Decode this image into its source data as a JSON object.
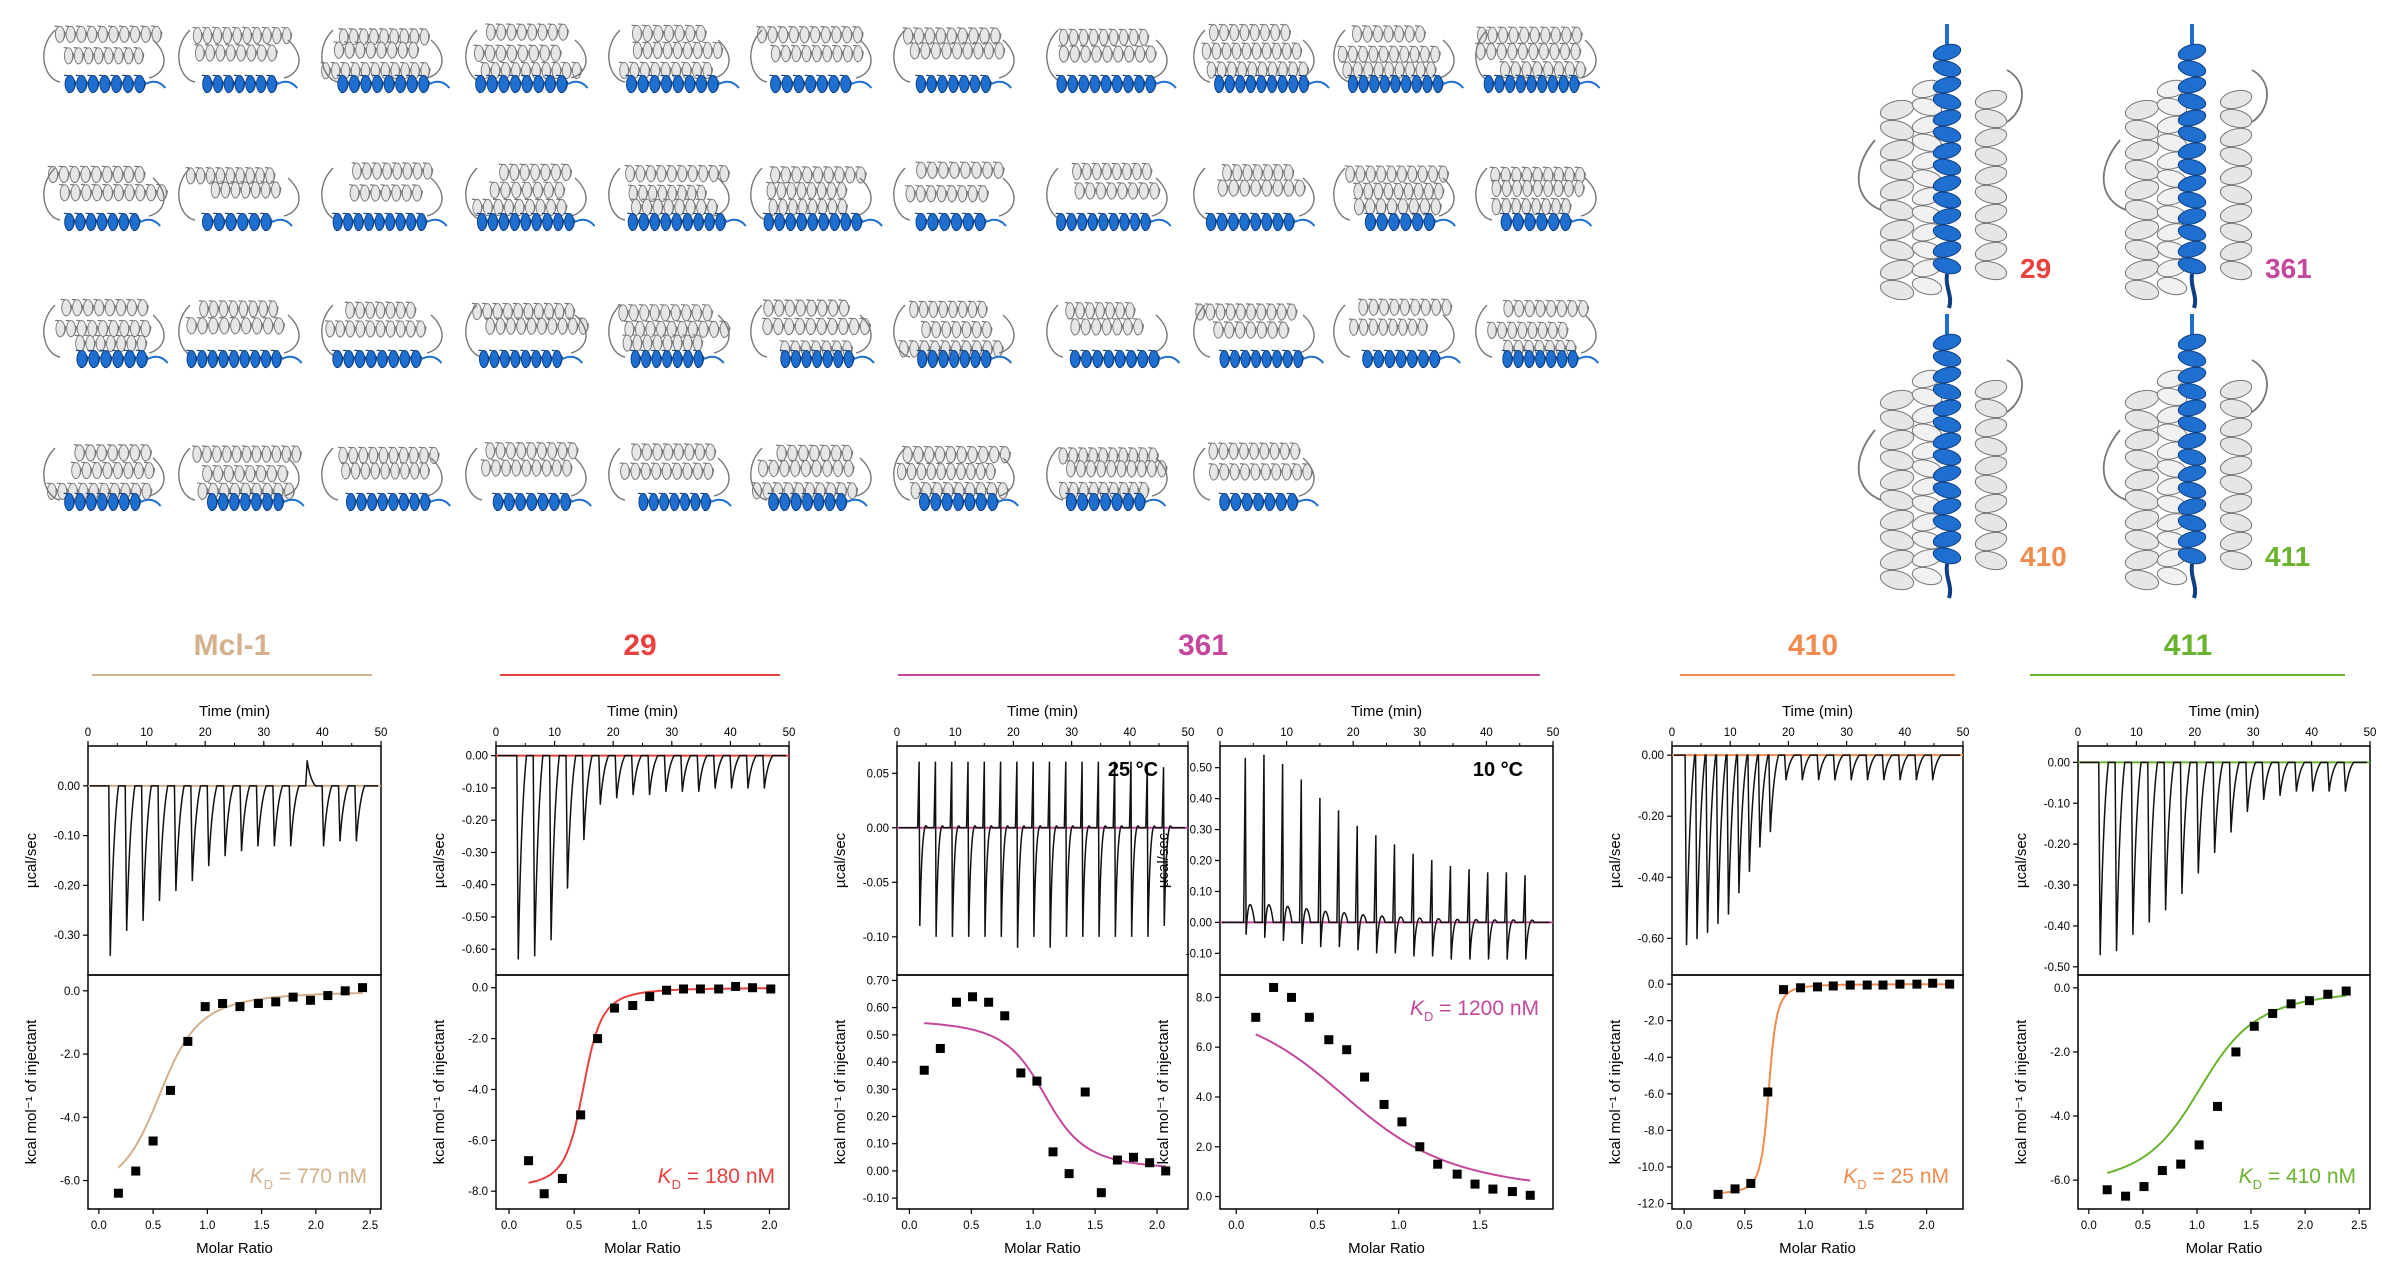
{
  "colors": {
    "helix_blue": "#1f6fd1",
    "helix_blue_light": "#4a8ee0",
    "protein_gray": "#e6e6e6",
    "protein_outline": "#777777",
    "trace": "#111111"
  },
  "structures": {
    "grid_rows": [
      11,
      11,
      11,
      9
    ],
    "labeled": [
      {
        "label": "29",
        "color": "#e8423f"
      },
      {
        "label": "361",
        "color": "#c4479d"
      },
      {
        "label": "410",
        "color": "#f08c4e"
      },
      {
        "label": "411",
        "color": "#6ab32e"
      }
    ]
  },
  "chart_data": [
    {
      "type": "line",
      "panel": "thermogram",
      "group": "Mcl-1",
      "color": "#d4b08c",
      "xlabel": "Time (min)",
      "ylabel": "µcal/sec",
      "xlim": [
        0,
        50
      ],
      "ylim": [
        -0.38,
        0.08
      ],
      "xticks": [
        0,
        10,
        20,
        30,
        40,
        50
      ],
      "yticks": [
        0.0,
        -0.1,
        -0.2,
        -0.3
      ],
      "ytick_labels": [
        "0.00",
        "-0.10",
        "-0.20",
        "-0.30"
      ],
      "baseline": 0.0,
      "peak_times": [
        3.8,
        6.6,
        9.4,
        12.2,
        15.0,
        17.8,
        20.6,
        23.4,
        26.2,
        29.0,
        31.8,
        34.6,
        37.4,
        40.2,
        43.0,
        45.8
      ],
      "peak_values": [
        -0.34,
        -0.29,
        -0.27,
        -0.23,
        -0.21,
        -0.19,
        -0.16,
        -0.14,
        -0.13,
        -0.12,
        -0.12,
        -0.12,
        0.05,
        -0.12,
        -0.11,
        -0.11
      ]
    },
    {
      "type": "scatter",
      "panel": "binding_isotherm",
      "group": "Mcl-1",
      "color": "#d4b08c",
      "xlabel": "Molar Ratio",
      "ylabel": "kcal mol⁻¹ of injectant",
      "xlim": [
        -0.1,
        2.6
      ],
      "ylim": [
        -6.9,
        0.5
      ],
      "xticks": [
        0.0,
        0.5,
        1.0,
        1.5,
        2.0,
        2.5
      ],
      "yticks": [
        0.0,
        -2.0,
        -4.0,
        -6.0
      ],
      "ytick_labels": [
        "0.0",
        "-2.0",
        "-4.0",
        "-6.0"
      ],
      "x": [
        0.18,
        0.34,
        0.5,
        0.66,
        0.82,
        0.98,
        1.14,
        1.3,
        1.47,
        1.63,
        1.79,
        1.95,
        2.11,
        2.27,
        2.43
      ],
      "y": [
        -6.4,
        -5.7,
        -4.75,
        -3.15,
        -1.6,
        -0.5,
        -0.4,
        -0.5,
        -0.4,
        -0.35,
        -0.2,
        -0.3,
        -0.15,
        0.0,
        0.1
      ],
      "fit": {
        "n": 0.62,
        "dh": -6.6,
        "c": 10
      },
      "kd_symbol": "K",
      "kd_sub": "D",
      "kd_value": "= 770 nM"
    },
    {
      "type": "line",
      "panel": "thermogram",
      "group": "29",
      "color": "#e8423f",
      "xlabel": "Time (min)",
      "ylabel": "µcal/sec",
      "xlim": [
        0,
        50
      ],
      "ylim": [
        -0.68,
        0.03
      ],
      "xticks": [
        0,
        10,
        20,
        30,
        40,
        50
      ],
      "yticks": [
        0.0,
        -0.1,
        -0.2,
        -0.3,
        -0.4,
        -0.5,
        -0.6
      ],
      "ytick_labels": [
        "0.00",
        "-0.10",
        "-0.20",
        "-0.30",
        "-0.40",
        "-0.50",
        "-0.60"
      ],
      "baseline": 0.0,
      "peak_times": [
        3.8,
        6.6,
        9.4,
        12.2,
        15.0,
        17.8,
        20.6,
        23.4,
        26.2,
        29.0,
        31.8,
        34.6,
        37.4,
        40.2,
        43.0,
        45.8
      ],
      "peak_values": [
        -0.63,
        -0.62,
        -0.57,
        -0.41,
        -0.26,
        -0.15,
        -0.13,
        -0.12,
        -0.12,
        -0.11,
        -0.11,
        -0.11,
        -0.1,
        -0.1,
        -0.1,
        -0.1
      ]
    },
    {
      "type": "scatter",
      "panel": "binding_isotherm",
      "group": "29",
      "color": "#e8423f",
      "xlabel": "Molar Ratio",
      "ylabel": "kcal mol⁻¹ of injectant",
      "xlim": [
        -0.1,
        2.15
      ],
      "ylim": [
        -8.7,
        0.5
      ],
      "xticks": [
        0.0,
        0.5,
        1.0,
        1.5,
        2.0
      ],
      "yticks": [
        0.0,
        -2.0,
        -4.0,
        -6.0,
        -8.0
      ],
      "ytick_labels": [
        "0.0",
        "-2.0",
        "-4.0",
        "-6.0",
        "-8.0"
      ],
      "x": [
        0.15,
        0.27,
        0.41,
        0.55,
        0.68,
        0.81,
        0.95,
        1.08,
        1.21,
        1.34,
        1.47,
        1.61,
        1.74,
        1.87,
        2.01
      ],
      "y": [
        -6.8,
        -8.1,
        -7.5,
        -5.0,
        -2.0,
        -0.8,
        -0.7,
        -0.35,
        -0.1,
        -0.05,
        -0.05,
        -0.05,
        0.05,
        0.0,
        -0.05
      ],
      "fit": {
        "n": 0.58,
        "dh": -7.9,
        "c": 60
      },
      "kd_symbol": "K",
      "kd_sub": "D",
      "kd_value": "= 180 nM"
    },
    {
      "type": "line",
      "panel": "thermogram",
      "group": "361",
      "color": "#c4479d",
      "temperature": "25 °C",
      "xlabel": "Time (min)",
      "ylabel": "µcal/sec",
      "xlim": [
        0,
        50
      ],
      "ylim": [
        -0.135,
        0.075
      ],
      "xticks": [
        0,
        10,
        20,
        30,
        40,
        50
      ],
      "yticks": [
        0.05,
        0.0,
        -0.05,
        -0.1
      ],
      "ytick_labels": [
        "0.05",
        "0.00",
        "-0.05",
        "-0.10"
      ],
      "baseline": 0.0,
      "peak_times": [
        3.8,
        6.6,
        9.4,
        12.2,
        15.0,
        17.8,
        20.6,
        23.4,
        26.2,
        29.0,
        31.8,
        34.6,
        37.4,
        40.2,
        43.0,
        45.8
      ],
      "peak_values": [
        0.06,
        0.06,
        0.06,
        0.06,
        0.06,
        0.06,
        0.06,
        0.06,
        0.06,
        0.06,
        0.06,
        0.06,
        0.06,
        0.06,
        0.055,
        0.055
      ],
      "trough_values": [
        -0.09,
        -0.1,
        -0.1,
        -0.1,
        -0.1,
        -0.1,
        -0.11,
        -0.1,
        -0.11,
        -0.1,
        -0.1,
        -0.1,
        -0.1,
        -0.1,
        -0.1,
        -0.09
      ]
    },
    {
      "type": "scatter",
      "panel": "binding_isotherm",
      "group": "361",
      "color": "#c4479d",
      "xlabel": "Molar Ratio",
      "ylabel": "kcal mol⁻¹ of injectant",
      "xlim": [
        -0.1,
        2.25
      ],
      "ylim": [
        -0.14,
        0.72
      ],
      "xticks": [
        0.0,
        0.5,
        1.0,
        1.5,
        2.0
      ],
      "yticks": [
        0.7,
        0.6,
        0.5,
        0.4,
        0.3,
        0.2,
        0.1,
        0.0,
        -0.1
      ],
      "ytick_labels": [
        "0.70",
        "0.60",
        "0.50",
        "0.40",
        "0.30",
        "0.20",
        "0.10",
        "0.00",
        "-0.10"
      ],
      "x": [
        0.12,
        0.25,
        0.38,
        0.51,
        0.64,
        0.77,
        0.9,
        1.03,
        1.16,
        1.29,
        1.42,
        1.55,
        1.68,
        1.81,
        1.94,
        2.07
      ],
      "y": [
        0.37,
        0.45,
        0.62,
        0.64,
        0.62,
        0.57,
        0.36,
        0.33,
        0.07,
        -0.01,
        0.29,
        -0.08,
        0.04,
        0.05,
        0.03,
        0.0
      ],
      "fit": {
        "n": 1.12,
        "dh": 0.56,
        "c": 40
      },
      "kd_symbol": "",
      "kd_sub": "",
      "kd_value": ""
    },
    {
      "type": "line",
      "panel": "thermogram",
      "group": "361",
      "color": "#c4479d",
      "temperature": "10 °C",
      "xlabel": "Time (min)",
      "ylabel": "µcal/sec",
      "xlim": [
        0,
        50
      ],
      "ylim": [
        -0.17,
        0.57
      ],
      "xticks": [
        0,
        10,
        20,
        30,
        40,
        50
      ],
      "yticks": [
        0.5,
        0.4,
        0.3,
        0.2,
        0.1,
        0.0,
        -0.1
      ],
      "ytick_labels": [
        "0.50",
        "0.40",
        "0.30",
        "0.20",
        "0.10",
        "0.00",
        "-0.10"
      ],
      "baseline": 0.0,
      "peak_times": [
        3.8,
        6.6,
        9.4,
        12.2,
        15.0,
        17.8,
        20.6,
        23.4,
        26.2,
        29.0,
        31.8,
        34.6,
        37.4,
        40.2,
        43.0,
        45.8
      ],
      "peak_values": [
        0.53,
        0.54,
        0.51,
        0.46,
        0.4,
        0.36,
        0.31,
        0.28,
        0.25,
        0.22,
        0.2,
        0.18,
        0.17,
        0.16,
        0.16,
        0.15
      ],
      "trough_values": [
        -0.04,
        -0.05,
        -0.06,
        -0.07,
        -0.08,
        -0.08,
        -0.09,
        -0.1,
        -0.1,
        -0.11,
        -0.11,
        -0.12,
        -0.12,
        -0.12,
        -0.12,
        -0.12
      ]
    },
    {
      "type": "scatter",
      "panel": "binding_isotherm",
      "group": "361",
      "color": "#c4479d",
      "xlabel": "Molar Ratio",
      "ylabel": "kcal mol⁻¹ of injectant",
      "xlim": [
        -0.1,
        1.95
      ],
      "ylim": [
        -0.5,
        8.9
      ],
      "xticks": [
        0.0,
        0.5,
        1.0,
        1.5
      ],
      "yticks": [
        8.0,
        6.0,
        4.0,
        2.0,
        0.0
      ],
      "ytick_labels": [
        "8.0",
        "6.0",
        "4.0",
        "2.0",
        "0.0"
      ],
      "x": [
        0.12,
        0.23,
        0.34,
        0.45,
        0.57,
        0.68,
        0.79,
        0.91,
        1.02,
        1.13,
        1.24,
        1.36,
        1.47,
        1.58,
        1.7,
        1.81
      ],
      "y": [
        7.2,
        8.4,
        8.0,
        7.2,
        6.3,
        5.9,
        4.8,
        3.7,
        3.0,
        2.0,
        1.3,
        0.9,
        0.5,
        0.3,
        0.2,
        0.05
      ],
      "fit": {
        "n": 0.82,
        "dh": 8.2,
        "c": 5
      },
      "kd_symbol": "K",
      "kd_sub": "D",
      "kd_value": "= 1200 nM"
    },
    {
      "type": "line",
      "panel": "thermogram",
      "group": "410",
      "color": "#f08c4e",
      "xlabel": "Time (min)",
      "ylabel": "µcal/sec",
      "xlim": [
        0,
        50
      ],
      "ylim": [
        -0.72,
        0.03
      ],
      "xticks": [
        0,
        10,
        20,
        30,
        40,
        50
      ],
      "yticks": [
        0.0,
        -0.2,
        -0.4,
        -0.6
      ],
      "ytick_labels": [
        "0.00",
        "-0.20",
        "-0.40",
        "-0.60"
      ],
      "baseline": 0.0,
      "peak_times": [
        2.5,
        4.3,
        6.1,
        7.9,
        9.7,
        11.5,
        13.3,
        15.1,
        16.9,
        19.6,
        22.4,
        25.2,
        28.0,
        30.8,
        33.6,
        36.4,
        39.2,
        42.0,
        44.8
      ],
      "peak_values": [
        -0.62,
        -0.6,
        -0.58,
        -0.55,
        -0.52,
        -0.45,
        -0.38,
        -0.3,
        -0.25,
        -0.08,
        -0.08,
        -0.08,
        -0.08,
        -0.08,
        -0.08,
        -0.08,
        -0.08,
        -0.08,
        -0.08
      ]
    },
    {
      "type": "scatter",
      "panel": "binding_isotherm",
      "group": "410",
      "color": "#f08c4e",
      "xlabel": "Molar Ratio",
      "ylabel": "kcal mol⁻¹ of injectant",
      "xlim": [
        -0.1,
        2.3
      ],
      "ylim": [
        -12.3,
        0.5
      ],
      "xticks": [
        0.0,
        0.5,
        1.0,
        1.5,
        2.0
      ],
      "yticks": [
        0.0,
        -2.0,
        -4.0,
        -6.0,
        -8.0,
        -10.0,
        -12.0
      ],
      "ytick_labels": [
        "0.0",
        "-2.0",
        "-4.0",
        "-6.0",
        "-8.0",
        "-10.0",
        "-12.0"
      ],
      "x": [
        0.28,
        0.42,
        0.55,
        0.69,
        0.82,
        0.96,
        1.1,
        1.23,
        1.37,
        1.51,
        1.64,
        1.78,
        1.92,
        2.05,
        2.19
      ],
      "y": [
        -11.5,
        -11.2,
        -10.9,
        -5.9,
        -0.3,
        -0.2,
        -0.15,
        -0.1,
        -0.05,
        -0.05,
        -0.05,
        0.0,
        0.0,
        0.05,
        0.0
      ],
      "fit": {
        "n": 0.7,
        "dh": -11.5,
        "c": 400
      },
      "kd_symbol": "K",
      "kd_sub": "D",
      "kd_value": "= 25 nM"
    },
    {
      "type": "line",
      "panel": "thermogram",
      "group": "411",
      "color": "#6ab32e",
      "xlabel": "Time (min)",
      "ylabel": "µcal/sec",
      "xlim": [
        0,
        50
      ],
      "ylim": [
        -0.52,
        0.04
      ],
      "xticks": [
        0,
        10,
        20,
        30,
        40,
        50
      ],
      "yticks": [
        0.0,
        -0.1,
        -0.2,
        -0.3,
        -0.4,
        -0.5
      ],
      "ytick_labels": [
        "0.00",
        "-0.10",
        "-0.20",
        "-0.30",
        "-0.40",
        "-0.50"
      ],
      "baseline": 0.0,
      "peak_times": [
        3.8,
        6.6,
        9.4,
        12.2,
        15.0,
        17.8,
        20.6,
        23.4,
        26.2,
        29.0,
        31.8,
        34.6,
        37.4,
        40.2,
        43.0,
        45.8
      ],
      "peak_values": [
        -0.47,
        -0.46,
        -0.42,
        -0.39,
        -0.36,
        -0.32,
        -0.27,
        -0.22,
        -0.17,
        -0.12,
        -0.09,
        -0.08,
        -0.07,
        -0.07,
        -0.07,
        -0.07
      ]
    },
    {
      "type": "scatter",
      "panel": "binding_isotherm",
      "group": "411",
      "color": "#6ab32e",
      "xlabel": "Molar Ratio",
      "ylabel": "kcal mol⁻¹ of injectant",
      "xlim": [
        -0.1,
        2.6
      ],
      "ylim": [
        -6.9,
        0.4
      ],
      "xticks": [
        0.0,
        0.5,
        1.0,
        1.5,
        2.0,
        2.5
      ],
      "yticks": [
        0.0,
        -2.0,
        -4.0,
        -6.0
      ],
      "ytick_labels": [
        "0.0",
        "-2.0",
        "-4.0",
        "-6.0"
      ],
      "x": [
        0.17,
        0.34,
        0.51,
        0.68,
        0.85,
        1.02,
        1.19,
        1.36,
        1.53,
        1.7,
        1.87,
        2.04,
        2.21,
        2.38
      ],
      "y": [
        -6.3,
        -6.5,
        -6.2,
        -5.7,
        -5.5,
        -4.9,
        -3.7,
        -2.0,
        -1.2,
        -0.8,
        -0.5,
        -0.4,
        -0.2,
        -0.1
      ],
      "fit": {
        "n": 1.1,
        "dh": -6.3,
        "c": 15
      },
      "kd_symbol": "K",
      "kd_sub": "D",
      "kd_value": "= 410 nM"
    }
  ],
  "headers": [
    {
      "label": "Mcl-1",
      "color": "#d4b08c"
    },
    {
      "label": "29",
      "color": "#e8423f"
    },
    {
      "label": "361",
      "color": "#c4479d"
    },
    {
      "label": "410",
      "color": "#f08c4e"
    },
    {
      "label": "411",
      "color": "#6ab32e"
    }
  ]
}
